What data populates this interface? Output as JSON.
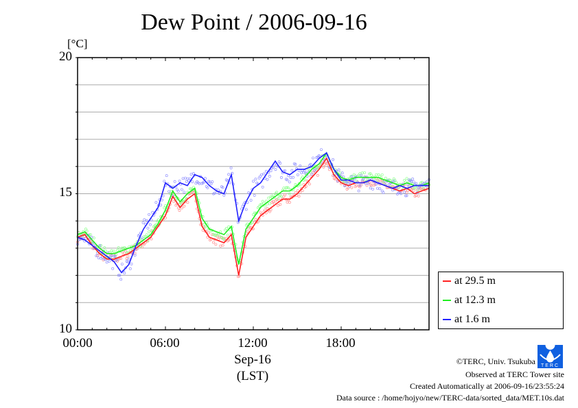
{
  "chart_data": {
    "type": "line",
    "title": "Dew Point / 2006-09-16",
    "ylabel": "[°C]",
    "xlabel": "Sep-16",
    "xlabel2": "(LST)",
    "ylim": [
      10,
      20
    ],
    "xlim_hours": [
      0,
      24
    ],
    "yticks": [
      "10",
      "15",
      "20"
    ],
    "xticks": [
      {
        "h": 0,
        "label": "00:00"
      },
      {
        "h": 6,
        "label": "06:00"
      },
      {
        "h": 12,
        "label": "12:00"
      },
      {
        "h": 18,
        "label": "18:00"
      }
    ],
    "grid": true,
    "legend_position": "right-bottom outside",
    "x_step_hours": 0.5,
    "series": [
      {
        "name": "at 29.5 m",
        "color": "#ff2020",
        "values": [
          13.4,
          13.5,
          13.1,
          12.8,
          12.6,
          12.6,
          12.7,
          12.8,
          13.0,
          13.2,
          13.4,
          13.8,
          14.2,
          14.9,
          14.5,
          14.8,
          15.0,
          13.8,
          13.4,
          13.3,
          13.2,
          13.5,
          12.0,
          13.4,
          13.8,
          14.2,
          14.4,
          14.6,
          14.8,
          14.8,
          15.0,
          15.3,
          15.6,
          15.9,
          16.3,
          15.7,
          15.4,
          15.3,
          15.4,
          15.4,
          15.5,
          15.4,
          15.3,
          15.2,
          15.1,
          15.2,
          15.0,
          15.1,
          15.2
        ]
      },
      {
        "name": "at 12.3 m",
        "color": "#20ee20",
        "values": [
          13.5,
          13.6,
          13.3,
          13.0,
          12.8,
          12.8,
          12.9,
          13.0,
          13.1,
          13.3,
          13.5,
          13.9,
          14.4,
          15.1,
          14.7,
          15.0,
          15.2,
          14.1,
          13.7,
          13.6,
          13.5,
          13.8,
          12.4,
          13.7,
          14.1,
          14.5,
          14.7,
          14.9,
          15.1,
          15.1,
          15.3,
          15.6,
          15.9,
          16.1,
          16.5,
          15.9,
          15.6,
          15.5,
          15.6,
          15.6,
          15.6,
          15.6,
          15.5,
          15.4,
          15.3,
          15.4,
          15.3,
          15.3,
          15.4
        ]
      },
      {
        "name": "at 1.6 m",
        "color": "#2020ff",
        "values": [
          13.4,
          13.3,
          13.1,
          12.9,
          12.7,
          12.5,
          12.1,
          12.4,
          13.1,
          13.7,
          14.1,
          14.5,
          15.4,
          15.2,
          15.4,
          15.3,
          15.7,
          15.6,
          15.3,
          15.1,
          15.0,
          15.7,
          14.0,
          14.7,
          15.2,
          15.4,
          15.8,
          16.2,
          15.8,
          15.7,
          15.9,
          15.9,
          16.0,
          16.3,
          16.5,
          15.9,
          15.5,
          15.5,
          15.4,
          15.4,
          15.5,
          15.4,
          15.3,
          15.2,
          15.3,
          15.2,
          15.3,
          15.3,
          15.3
        ]
      }
    ]
  },
  "footer": {
    "copyright": "©TERC, Univ. Tsukuba",
    "observed": "Observed at TERC Tower site",
    "created": "Created Automatically at 2006-09-16/23:55:24",
    "source": "Data source : /home/hojyo/new/TERC-data/sorted_data/MET.10s.dat",
    "logo_text": "TERC"
  }
}
